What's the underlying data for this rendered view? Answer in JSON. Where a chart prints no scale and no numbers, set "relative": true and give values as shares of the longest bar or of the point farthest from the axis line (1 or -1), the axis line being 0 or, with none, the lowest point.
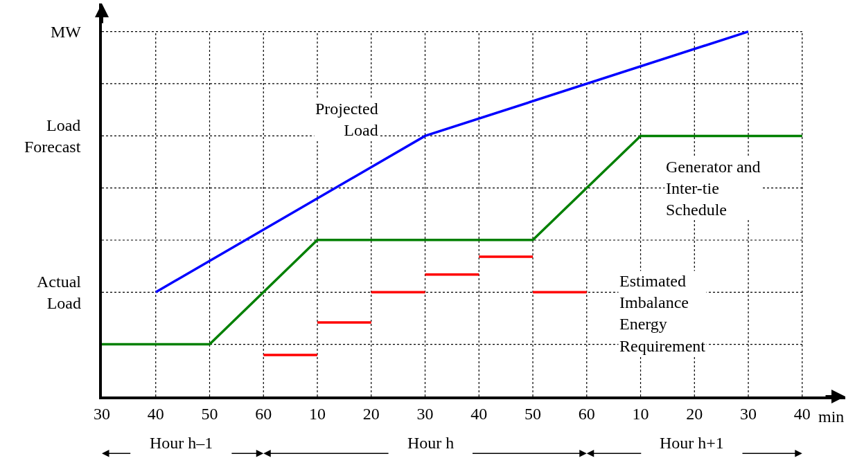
{
  "chart_data": {
    "type": "line",
    "relative": true,
    "xlabel": "min",
    "categories": [
      "30",
      "40",
      "50",
      "60",
      "10",
      "20",
      "30",
      "40",
      "50",
      "60",
      "10",
      "20",
      "30",
      "40"
    ],
    "grid": true,
    "line_style": "solid",
    "series": [
      {
        "color": "#0000ff",
        "values": [
          null,
          0.286,
          null,
          null,
          null,
          null,
          0.714,
          null,
          null,
          null,
          null,
          null,
          1,
          null
        ]
      },
      {
        "color": "#008000",
        "values": [
          0.143,
          null,
          0.143,
          null,
          0.429,
          null,
          null,
          null,
          0.429,
          null,
          0.714,
          null,
          null,
          0.714
        ]
      },
      {
        "color": "#ff0000",
        "values": [
          null,
          null,
          null,
          0.114,
          0.114,
          null,
          null,
          null,
          null,
          null,
          null,
          null,
          null,
          null
        ]
      },
      {
        "color": "#ff0000",
        "values": [
          null,
          null,
          null,
          null,
          0.203,
          0.203,
          null,
          null,
          null,
          null,
          null,
          null,
          null,
          null
        ]
      },
      {
        "color": "#ff0000",
        "values": [
          null,
          null,
          null,
          null,
          null,
          0.286,
          0.286,
          null,
          null,
          null,
          null,
          null,
          null,
          null
        ]
      },
      {
        "color": "#ff0000",
        "values": [
          null,
          null,
          null,
          null,
          null,
          null,
          0.334,
          0.334,
          null,
          null,
          null,
          null,
          null,
          null
        ]
      },
      {
        "color": "#ff0000",
        "values": [
          null,
          null,
          null,
          null,
          null,
          null,
          null,
          0.383,
          0.383,
          null,
          null,
          null,
          null,
          null
        ]
      },
      {
        "color": "#ff0000",
        "values": [
          null,
          null,
          null,
          null,
          null,
          null,
          null,
          null,
          0.286,
          0.286,
          null,
          null,
          null,
          null
        ]
      }
    ],
    "annotations": [
      "MW",
      "Load Forecast",
      "Actual Load",
      "Projected Load",
      "Generator and Inter-tie Schedule",
      "Estimated Imbalance Energy Requirement",
      "Hour h–1",
      "Hour h",
      "Hour h+1"
    ]
  }
}
